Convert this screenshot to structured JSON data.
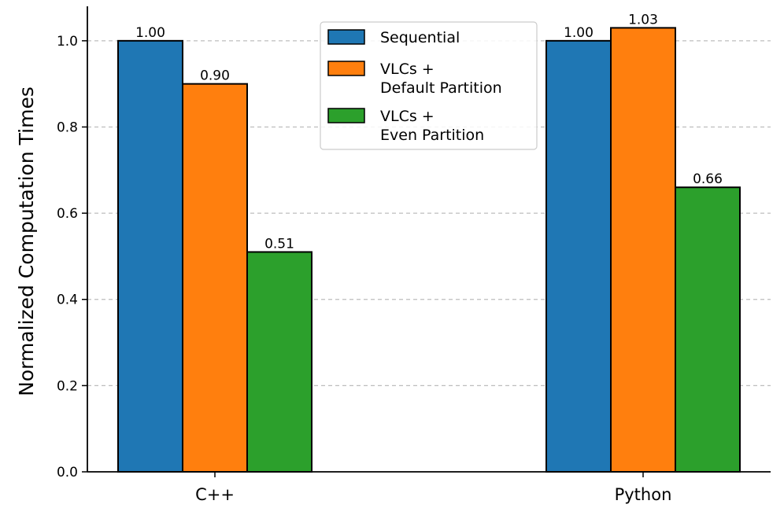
{
  "chart_data": {
    "type": "bar",
    "title": "",
    "xlabel": "",
    "ylabel": "Normalized Computation Times",
    "categories": [
      "C++",
      "Python"
    ],
    "series": [
      {
        "name": "Sequential",
        "color": "#1f77b4",
        "values": [
          1.0,
          1.0
        ],
        "labels": [
          "1.00",
          "1.00"
        ]
      },
      {
        "name": "VLCs +\nDefault Partition",
        "color": "#ff7f0e",
        "values": [
          0.9,
          1.03
        ],
        "labels": [
          "0.90",
          "1.03"
        ]
      },
      {
        "name": "VLCs +\nEven Partition",
        "color": "#2ca02c",
        "values": [
          0.51,
          0.66
        ],
        "labels": [
          "0.51",
          "0.66"
        ]
      }
    ],
    "ylim": [
      0,
      1.08
    ],
    "yticks": [
      0.0,
      0.2,
      0.4,
      0.6,
      0.8,
      1.0
    ],
    "ytick_labels": [
      "0.0",
      "0.2",
      "0.4",
      "0.6",
      "0.8",
      "1.0"
    ],
    "grid": "y-dashed",
    "legend": "top-center"
  }
}
